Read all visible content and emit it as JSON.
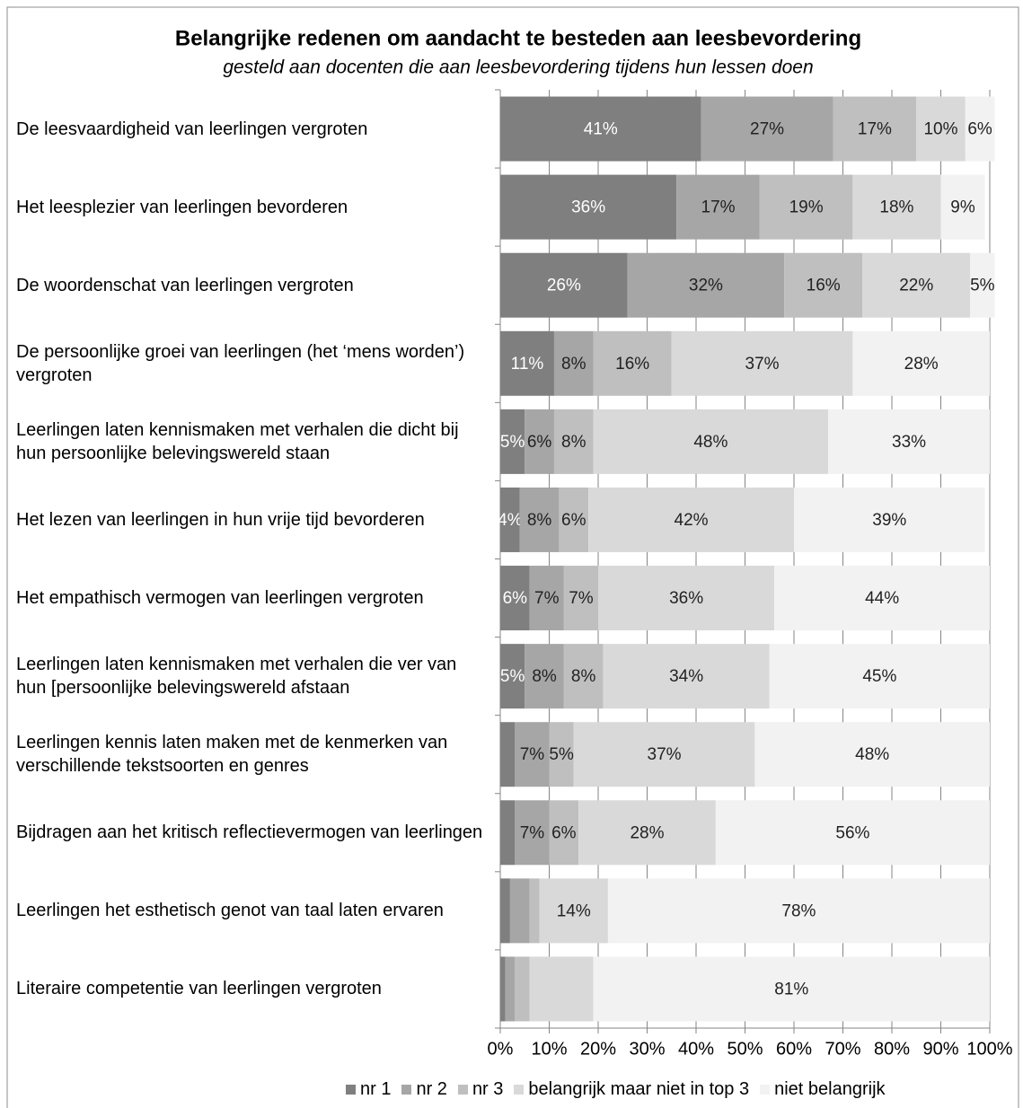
{
  "chart_data": {
    "type": "stacked_bar_horizontal",
    "title": "Belangrijke redenen om aandacht te besteden aan leesbevordering",
    "subtitle": "gesteld aan docenten die aan leesbevordering tijdens hun lessen doen",
    "categories": [
      "De leesvaardigheid van leerlingen vergroten",
      "Het leesplezier van leerlingen bevorderen",
      "De woordenschat van leerlingen vergroten",
      "De persoonlijke groei van leerlingen (het ‘mens worden’) vergroten",
      "Leerlingen laten kennismaken met verhalen die dicht bij hun persoonlijke belevingswereld staan",
      "Het lezen van leerlingen in hun vrije tijd bevorderen",
      "Het empathisch vermogen van leerlingen vergroten",
      "Leerlingen laten kennismaken met verhalen die ver van hun [persoonlijke belevingswereld afstaan",
      "Leerlingen kennis laten maken met de kenmerken van verschillende tekstsoorten en genres",
      "Bijdragen aan het kritisch reflectievermogen van leerlingen",
      "Leerlingen het esthetisch genot van taal laten ervaren",
      "Literaire competentie van leerlingen vergroten"
    ],
    "series": [
      {
        "name": "nr 1",
        "color": "#7f7f7f",
        "values": [
          41,
          36,
          26,
          11,
          5,
          4,
          6,
          5,
          3,
          3,
          2,
          1
        ],
        "value_labels": [
          "41%",
          "36%",
          "26%",
          "11%",
          "5%",
          "4%",
          "6%",
          "5%",
          null,
          null,
          null,
          null
        ]
      },
      {
        "name": "nr 2",
        "color": "#a6a6a6",
        "values": [
          27,
          17,
          32,
          8,
          6,
          8,
          7,
          8,
          7,
          7,
          4,
          2
        ],
        "value_labels": [
          "27%",
          "17%",
          "32%",
          "8%",
          "6%",
          "8%",
          "7%",
          "8%",
          "7%",
          "7%",
          null,
          null
        ]
      },
      {
        "name": "nr 3",
        "color": "#bfbfbf",
        "values": [
          17,
          19,
          16,
          16,
          8,
          6,
          7,
          8,
          5,
          6,
          2,
          3
        ],
        "value_labels": [
          "17%",
          "19%",
          "16%",
          "16%",
          "8%",
          "6%",
          "7%",
          "8%",
          "5%",
          "6%",
          null,
          null
        ]
      },
      {
        "name": "belangrijk maar niet in top 3",
        "color": "#d9d9d9",
        "values": [
          10,
          18,
          22,
          37,
          48,
          42,
          36,
          34,
          37,
          28,
          14,
          13
        ],
        "value_labels": [
          "10%",
          "18%",
          "22%",
          "37%",
          "48%",
          "42%",
          "36%",
          "34%",
          "37%",
          "28%",
          "14%",
          null
        ]
      },
      {
        "name": "niet belangrijk",
        "color": "#f2f2f2",
        "values": [
          6,
          9,
          5,
          28,
          33,
          39,
          44,
          45,
          48,
          56,
          78,
          81
        ],
        "value_labels": [
          "6%",
          "9%",
          "5%",
          "28%",
          "33%",
          "39%",
          "44%",
          "45%",
          "48%",
          "56%",
          "78%",
          "81%"
        ]
      }
    ],
    "xlim": [
      0,
      100
    ],
    "xticks": [
      {
        "value": 0,
        "label": "0%"
      },
      {
        "value": 10,
        "label": "10%"
      },
      {
        "value": 20,
        "label": "20%"
      },
      {
        "value": 30,
        "label": "30%"
      },
      {
        "value": 40,
        "label": "40%"
      },
      {
        "value": 50,
        "label": "50%"
      },
      {
        "value": 60,
        "label": "60%"
      },
      {
        "value": 70,
        "label": "70%"
      },
      {
        "value": 80,
        "label": "80%"
      },
      {
        "value": 90,
        "label": "90%"
      },
      {
        "value": 100,
        "label": "100%"
      }
    ],
    "grid": true,
    "legend": "bottom"
  }
}
